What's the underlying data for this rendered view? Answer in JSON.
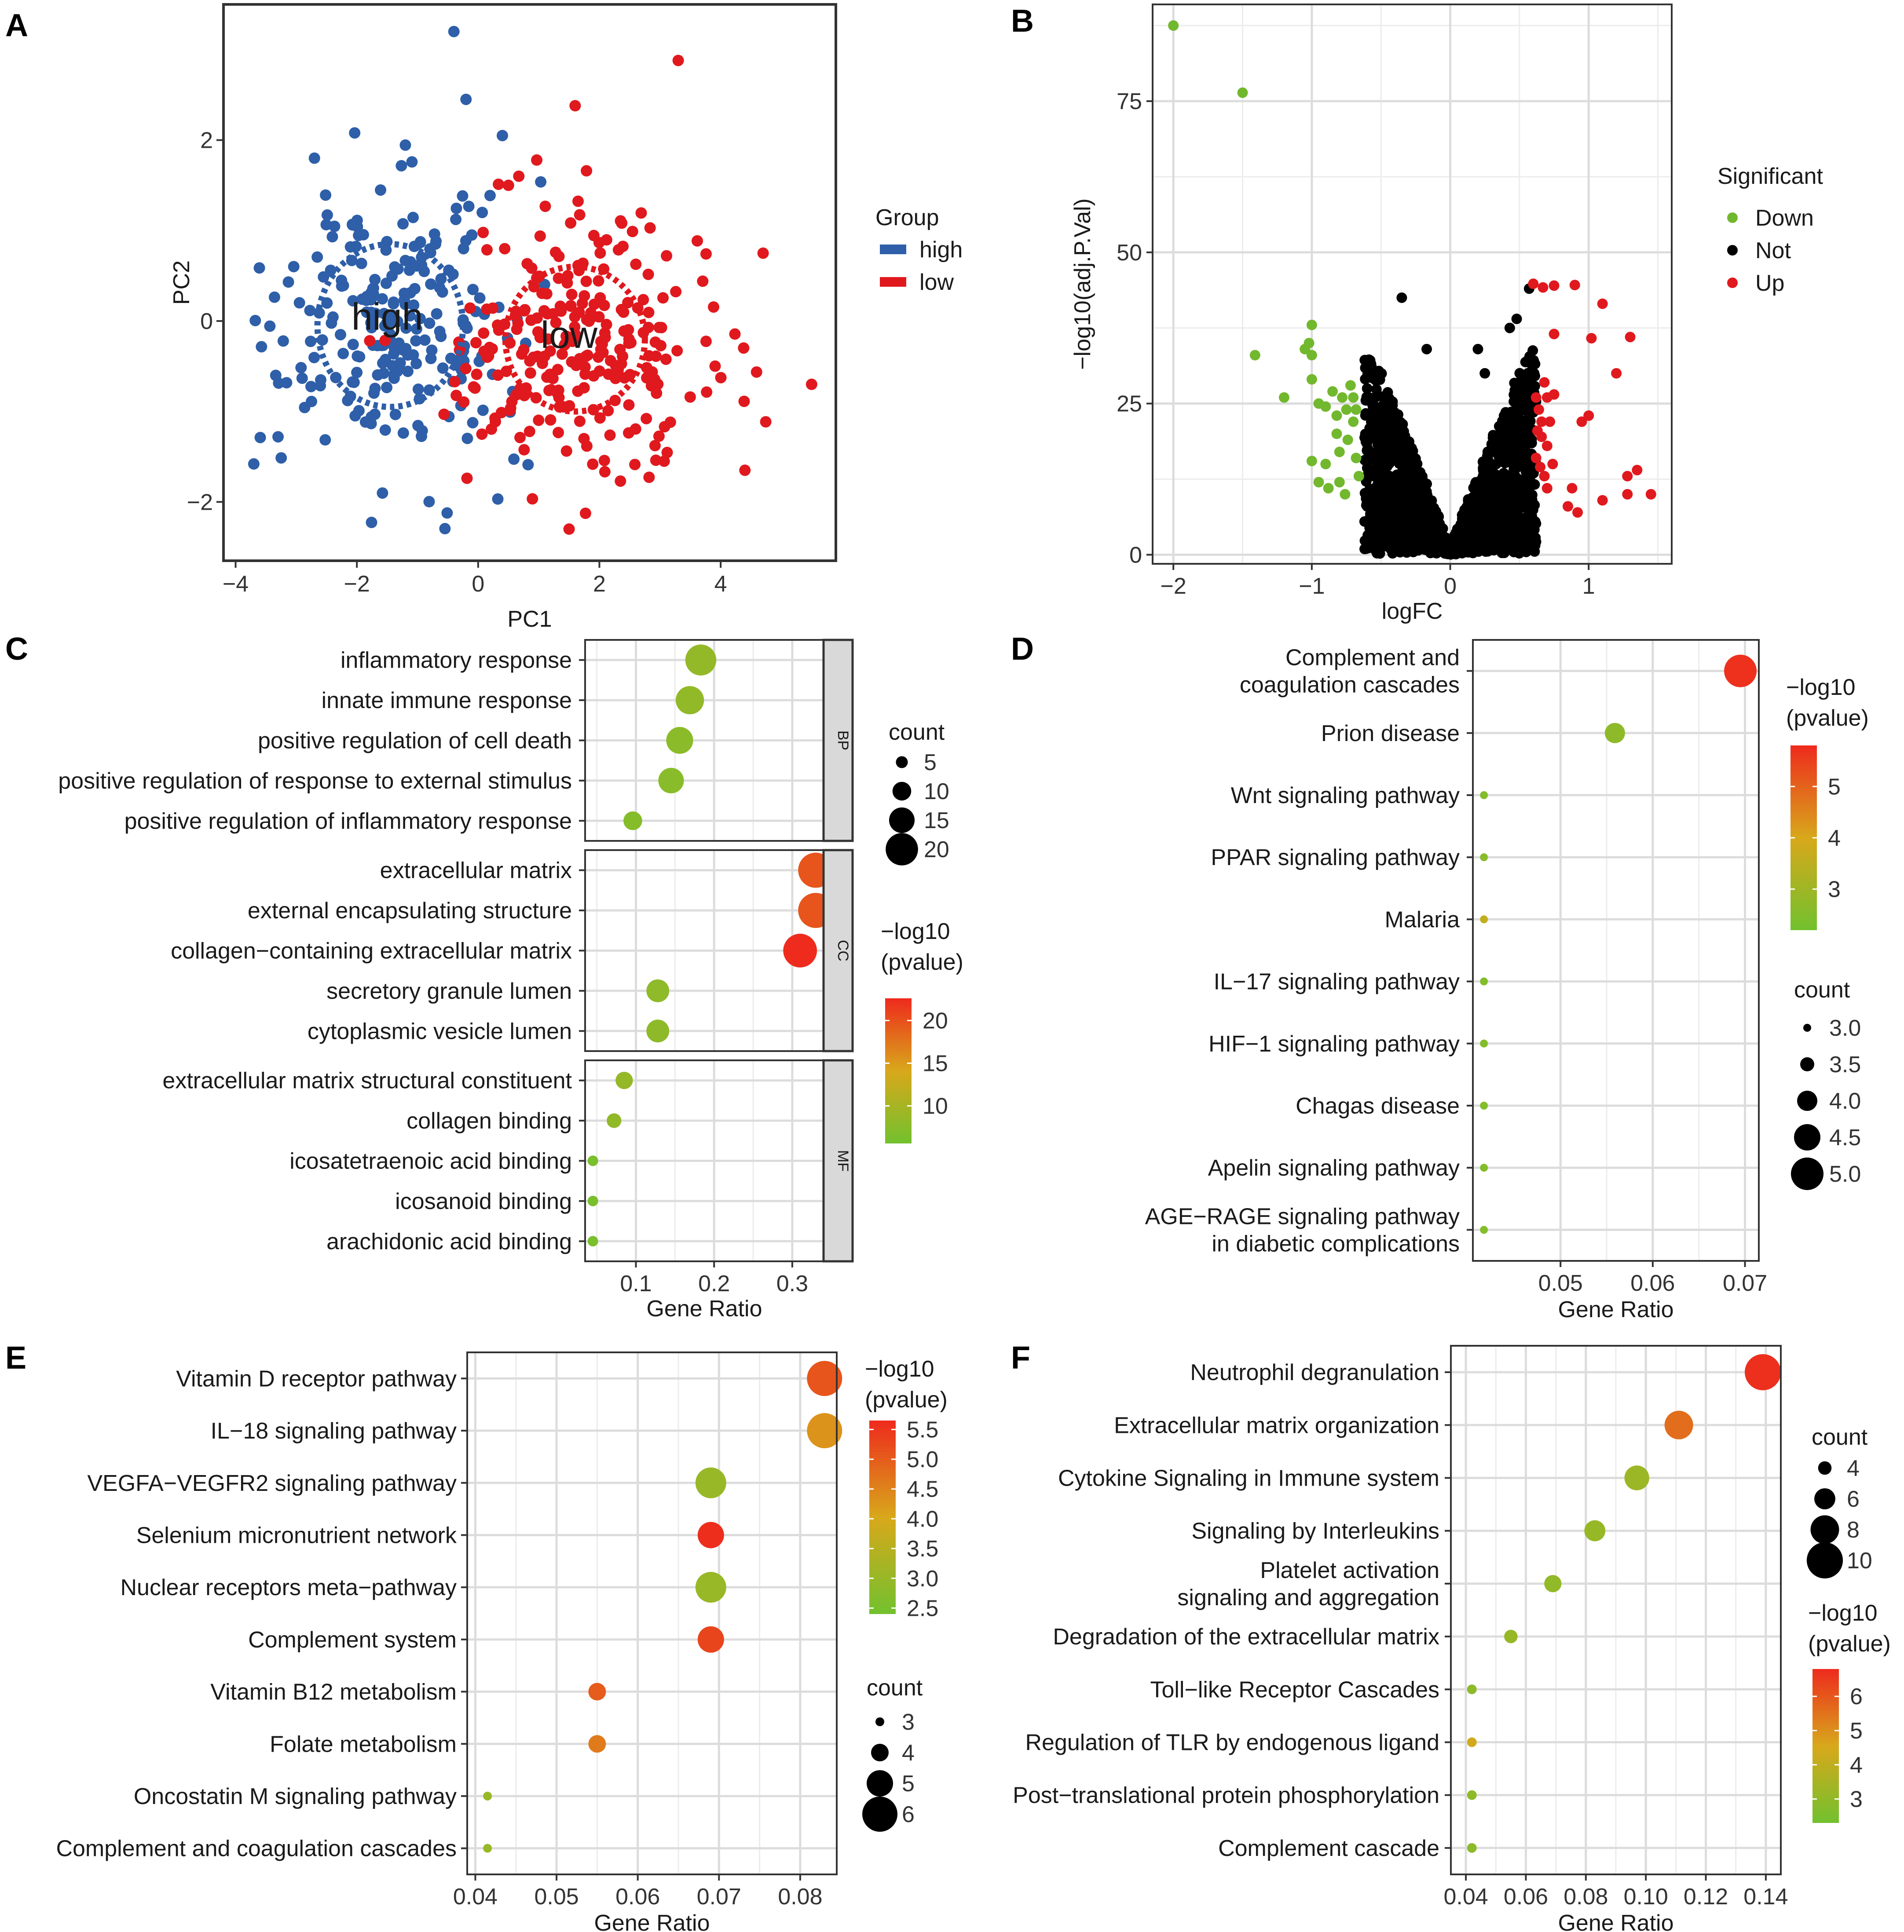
{
  "panel_letters": [
    "A",
    "B",
    "C",
    "D",
    "E",
    "F"
  ],
  "colors": {
    "high": "#2e5fa8",
    "low": "#e0191e",
    "down": "#72b82e",
    "not": "#000000",
    "up": "#e0191e",
    "grad_low": "#72c12e",
    "grad_mid": "#d8a81b",
    "grad_high": "#ee2a1d"
  },
  "chart_data": [
    {
      "panel": "A",
      "type": "scatter",
      "xlabel": "PC1",
      "ylabel": "PC2",
      "xlim": [
        -4.2,
        5.9
      ],
      "ylim": [
        -2.65,
        3.5
      ],
      "xticks": [
        -4,
        -2,
        0,
        2,
        4
      ],
      "yticks": [
        -2,
        0,
        2
      ],
      "xtick_labels": [
        "−4",
        "−2",
        "0",
        "2",
        "4"
      ],
      "ytick_labels": [
        "−2",
        "0",
        "2"
      ],
      "legend": {
        "title": "Group",
        "entries": [
          "high",
          "low"
        ],
        "position": "right"
      },
      "annotations": [
        {
          "text": "high",
          "x": -1.5,
          "y": 0.05
        },
        {
          "text": "low",
          "x": 1.5,
          "y": -0.15
        }
      ],
      "ellipses": [
        {
          "group": "high",
          "cx": -1.45,
          "cy": -0.05,
          "rx": 1.2,
          "ry": 0.9
        },
        {
          "group": "low",
          "cx": 1.6,
          "cy": -0.2,
          "rx": 1.15,
          "ry": 0.8
        }
      ],
      "series": [
        {
          "name": "high",
          "n": 240,
          "cx": -1.45,
          "cy": -0.05,
          "sx": 0.95,
          "sy": 0.75,
          "outliers": [
            [
              -0.4,
              3.2
            ],
            [
              -0.2,
              2.45
            ],
            [
              0.4,
              2.05
            ],
            [
              -3.7,
              -1.58
            ],
            [
              -3.3,
              -1.28
            ],
            [
              -2.7,
              1.8
            ]
          ]
        },
        {
          "name": "low",
          "n": 260,
          "cx": 1.6,
          "cy": -0.3,
          "sx": 1.05,
          "sy": 0.65,
          "outliers": [
            [
              3.3,
              2.88
            ],
            [
              1.6,
              2.38
            ],
            [
              5.5,
              -0.7
            ],
            [
              4.4,
              -1.65
            ],
            [
              1.5,
              -2.3
            ],
            [
              0.5,
              1.5
            ],
            [
              4.7,
              0.75
            ]
          ]
        }
      ]
    },
    {
      "panel": "B",
      "type": "scatter",
      "title": "",
      "xlabel": "logFC",
      "ylabel": "−log10(adj.P.Val)",
      "xlim": [
        -2.15,
        1.6
      ],
      "ylim": [
        -1.5,
        91
      ],
      "xticks": [
        -2,
        -1,
        0,
        1
      ],
      "yticks": [
        0,
        25,
        50,
        75
      ],
      "xtick_labels": [
        "−2",
        "−1",
        "0",
        "1"
      ],
      "ytick_labels": [
        "0",
        "25",
        "50",
        "75"
      ],
      "legend": {
        "title": "Significant",
        "entries": [
          "Down",
          "Not",
          "Up"
        ],
        "position": "right"
      },
      "series": [
        {
          "name": "Down",
          "points": [
            [
              -2.0,
              87.5
            ],
            [
              -1.5,
              76.4
            ],
            [
              -1.41,
              33
            ],
            [
              -1.0,
              38
            ],
            [
              -1.02,
              35
            ],
            [
              -1.0,
              33
            ],
            [
              -1.05,
              34
            ],
            [
              -1.2,
              26
            ],
            [
              -1.0,
              29
            ],
            [
              -0.95,
              25
            ],
            [
              -1.0,
              15.5
            ],
            [
              -0.9,
              15
            ],
            [
              -0.95,
              12
            ],
            [
              -0.82,
              20
            ],
            [
              -0.8,
              17
            ],
            [
              -0.85,
              27
            ],
            [
              -0.78,
              26
            ],
            [
              -0.75,
              24
            ],
            [
              -0.72,
              28
            ],
            [
              -0.7,
              22
            ],
            [
              -0.68,
              16
            ],
            [
              -0.66,
              13
            ],
            [
              -0.8,
              12
            ],
            [
              -0.76,
              10
            ],
            [
              -0.88,
              11
            ],
            [
              -0.74,
              19
            ],
            [
              -0.7,
              26
            ],
            [
              -0.68,
              24
            ],
            [
              -0.82,
              23
            ],
            [
              -0.9,
              24.5
            ]
          ]
        },
        {
          "name": "Not",
          "n": 1600,
          "xmax": 0.62,
          "ymax": 45,
          "points": [
            [
              -0.35,
              42.5
            ],
            [
              -0.17,
              34
            ],
            [
              0.2,
              34
            ],
            [
              0.25,
              30
            ],
            [
              0.43,
              37.5
            ],
            [
              0.48,
              39
            ],
            [
              0.57,
              44
            ],
            [
              -0.6,
              8
            ],
            [
              -0.5,
              11
            ]
          ]
        },
        {
          "name": "Up",
          "points": [
            [
              0.6,
              44.8
            ],
            [
              0.67,
              44.2
            ],
            [
              0.75,
              44.5
            ],
            [
              0.9,
              44.6
            ],
            [
              1.1,
              41.5
            ],
            [
              0.75,
              36.5
            ],
            [
              0.75,
              26.5
            ],
            [
              1.02,
              35.8
            ],
            [
              1.3,
              36
            ],
            [
              0.68,
              28.5
            ],
            [
              0.7,
              26
            ],
            [
              0.72,
              22
            ],
            [
              0.66,
              19.5
            ],
            [
              0.62,
              16
            ],
            [
              0.68,
              13
            ],
            [
              0.7,
              11
            ],
            [
              0.64,
              24
            ],
            [
              0.66,
              22
            ],
            [
              0.7,
              18
            ],
            [
              0.63,
              20.5
            ],
            [
              0.65,
              14.5
            ],
            [
              0.74,
              15
            ],
            [
              0.88,
              11
            ],
            [
              0.85,
              8
            ],
            [
              0.92,
              7
            ],
            [
              1.1,
              9
            ],
            [
              1.28,
              10
            ],
            [
              1.45,
              10
            ],
            [
              1.35,
              14
            ],
            [
              1.28,
              13
            ],
            [
              0.95,
              22
            ],
            [
              1.0,
              23
            ],
            [
              1.2,
              30
            ],
            [
              0.62,
              26
            ]
          ]
        }
      ]
    },
    {
      "panel": "C",
      "type": "scatter",
      "subtype": "dotplot-faceted",
      "xlabel": "Gene Ratio",
      "xlim": [
        0.035,
        0.34
      ],
      "xticks": [
        0.1,
        0.2,
        0.3
      ],
      "xtick_labels": [
        "0.1",
        "0.2",
        "0.3"
      ],
      "size_legend": {
        "title": "count",
        "values": [
          5,
          10,
          15,
          20
        ]
      },
      "color_legend": {
        "title": [
          "−log10",
          "(pvalue)"
        ],
        "min": 5.6,
        "max": 22.6,
        "ticks": [
          10,
          15,
          20
        ]
      },
      "facets": [
        {
          "name": "BP",
          "terms": [
            {
              "label": "inflammatory response",
              "ratio": 0.183,
              "count": 19,
              "p": 8.4
            },
            {
              "label": "innate immune response",
              "ratio": 0.169,
              "count": 17,
              "p": 8.2
            },
            {
              "label": "positive regulation of cell death",
              "ratio": 0.156,
              "count": 16,
              "p": 7.8
            },
            {
              "label": "positive regulation of response to external stimulus",
              "ratio": 0.145,
              "count": 15,
              "p": 7.4
            },
            {
              "label": "positive regulation of inflammatory response",
              "ratio": 0.096,
              "count": 10,
              "p": 7.2
            }
          ]
        },
        {
          "name": "CC",
          "terms": [
            {
              "label": "extracellular matrix",
              "ratio": 0.33,
              "count": 22,
              "p": 19.8
            },
            {
              "label": "external encapsulating structure",
              "ratio": 0.33,
              "count": 22,
              "p": 19.8
            },
            {
              "label": "collagen−containing extracellular matrix",
              "ratio": 0.31,
              "count": 21,
              "p": 22.5
            },
            {
              "label": "secretory granule lumen",
              "ratio": 0.128,
              "count": 13,
              "p": 8.0
            },
            {
              "label": "cytoplasmic vesicle lumen",
              "ratio": 0.128,
              "count": 13,
              "p": 7.9
            }
          ]
        },
        {
          "name": "MF",
          "terms": [
            {
              "label": "extracellular matrix structural constituent",
              "ratio": 0.085,
              "count": 9,
              "p": 8.5
            },
            {
              "label": "collagen binding",
              "ratio": 0.072,
              "count": 7,
              "p": 8.3
            },
            {
              "label": "icosatetraenoic acid binding",
              "ratio": 0.045,
              "count": 4,
              "p": 6.3
            },
            {
              "label": "icosanoid binding",
              "ratio": 0.045,
              "count": 4,
              "p": 6.3
            },
            {
              "label": "arachidonic acid binding",
              "ratio": 0.045,
              "count": 4,
              "p": 6.3
            }
          ]
        }
      ]
    },
    {
      "panel": "D",
      "type": "scatter",
      "subtype": "dotplot",
      "xlabel": "Gene Ratio",
      "xlim": [
        0.0405,
        0.0715
      ],
      "xticks": [
        0.05,
        0.06,
        0.07
      ],
      "xtick_labels": [
        "0.05",
        "0.06",
        "0.07"
      ],
      "size_legend": {
        "title": "count",
        "values": [
          3.0,
          3.5,
          4.0,
          4.5,
          5.0
        ],
        "labels": [
          "3.0",
          "3.5",
          "4.0",
          "4.5",
          "5.0"
        ]
      },
      "color_legend": {
        "title": [
          "−log10",
          "(pvalue)"
        ],
        "min": 2.2,
        "max": 5.8,
        "ticks": [
          3,
          4,
          5
        ]
      },
      "terms": [
        {
          "label": [
            "Complement and",
            "coagulation cascades"
          ],
          "ratio": 0.0695,
          "count": 5,
          "p": 5.7
        },
        {
          "label": [
            "Prion disease"
          ],
          "ratio": 0.0559,
          "count": 4,
          "p": 2.7
        },
        {
          "label": [
            "Wnt signaling pathway"
          ],
          "ratio": 0.0417,
          "count": 3,
          "p": 2.5
        },
        {
          "label": [
            "PPAR signaling pathway"
          ],
          "ratio": 0.0417,
          "count": 3,
          "p": 2.6
        },
        {
          "label": [
            "Malaria"
          ],
          "ratio": 0.0417,
          "count": 3,
          "p": 3.6
        },
        {
          "label": [
            "IL−17 signaling pathway"
          ],
          "ratio": 0.0417,
          "count": 3,
          "p": 2.5
        },
        {
          "label": [
            "HIF−1 signaling pathway"
          ],
          "ratio": 0.0417,
          "count": 3,
          "p": 2.5
        },
        {
          "label": [
            "Chagas disease"
          ],
          "ratio": 0.0417,
          "count": 3,
          "p": 2.5
        },
        {
          "label": [
            "Apelin signaling pathway"
          ],
          "ratio": 0.0417,
          "count": 3,
          "p": 2.5
        },
        {
          "label": [
            "AGE−RAGE signaling pathway",
            "in diabetic complications"
          ],
          "ratio": 0.0417,
          "count": 3,
          "p": 2.5
        }
      ]
    },
    {
      "panel": "E",
      "type": "scatter",
      "subtype": "dotplot",
      "xlabel": "Gene Ratio",
      "xlim": [
        0.039,
        0.0845
      ],
      "xticks": [
        0.04,
        0.05,
        0.06,
        0.07,
        0.08
      ],
      "xtick_labels": [
        "0.04",
        "0.05",
        "0.06",
        "0.07",
        "0.08"
      ],
      "size_legend": {
        "title": "count",
        "values": [
          3,
          4,
          5,
          6
        ]
      },
      "color_legend": {
        "title": [
          "−log10",
          "(pvalue)"
        ],
        "min": 2.4,
        "max": 5.65,
        "ticks": [
          2.5,
          3.0,
          3.5,
          4.0,
          4.5,
          5.0,
          5.5
        ],
        "labels": [
          "2.5",
          "3.0",
          "3.5",
          "4.0",
          "4.5",
          "5.0",
          "5.5"
        ]
      },
      "terms": [
        {
          "label": [
            "Vitamin D receptor pathway"
          ],
          "ratio": 0.083,
          "count": 6,
          "p": 5.1
        },
        {
          "label": [
            "IL−18 signaling pathway"
          ],
          "ratio": 0.083,
          "count": 6,
          "p": 4.3
        },
        {
          "label": [
            "VEGFA−VEGFR2 signaling pathway"
          ],
          "ratio": 0.069,
          "count": 5.5,
          "p": 3.0
        },
        {
          "label": [
            "Selenium micronutrient network"
          ],
          "ratio": 0.069,
          "count": 5,
          "p": 5.6
        },
        {
          "label": [
            "Nuclear receptors meta−pathway"
          ],
          "ratio": 0.069,
          "count": 5.5,
          "p": 3.0
        },
        {
          "label": [
            "Complement system"
          ],
          "ratio": 0.069,
          "count": 5,
          "p": 5.3
        },
        {
          "label": [
            "Vitamin B12 metabolism"
          ],
          "ratio": 0.055,
          "count": 4,
          "p": 5.0
        },
        {
          "label": [
            "Folate metabolism"
          ],
          "ratio": 0.055,
          "count": 4,
          "p": 4.6
        },
        {
          "label": [
            "Oncostatin M signaling pathway"
          ],
          "ratio": 0.0415,
          "count": 3,
          "p": 3.0
        },
        {
          "label": [
            "Complement and coagulation cascades"
          ],
          "ratio": 0.0415,
          "count": 3,
          "p": 3.0
        }
      ]
    },
    {
      "panel": "F",
      "type": "scatter",
      "subtype": "dotplot",
      "xlabel": "Gene Ratio",
      "xlim": [
        0.035,
        0.145
      ],
      "xticks": [
        0.04,
        0.06,
        0.08,
        0.1,
        0.12,
        0.14
      ],
      "xtick_labels": [
        "0.04",
        "0.06",
        "0.08",
        "0.10",
        "0.12",
        "0.14"
      ],
      "size_legend": {
        "title": "count",
        "values": [
          4,
          6,
          8,
          10
        ]
      },
      "color_legend": {
        "title": [
          "−log10",
          "(pvalue)"
        ],
        "min": 2.3,
        "max": 6.8,
        "ticks": [
          3,
          4,
          5,
          6
        ]
      },
      "terms": [
        {
          "label": [
            "Neutrophil degranulation"
          ],
          "ratio": 0.139,
          "count": 10,
          "p": 6.7
        },
        {
          "label": [
            "Extracellular matrix organization"
          ],
          "ratio": 0.111,
          "count": 8,
          "p": 5.6
        },
        {
          "label": [
            "Cytokine Signaling in Immune system"
          ],
          "ratio": 0.097,
          "count": 7,
          "p": 3.2
        },
        {
          "label": [
            "Signaling by Interleukins"
          ],
          "ratio": 0.083,
          "count": 6,
          "p": 3.1
        },
        {
          "label": [
            "Platelet activation",
            "signaling and aggregation"
          ],
          "ratio": 0.069,
          "count": 5,
          "p": 3.0
        },
        {
          "label": [
            "Degradation of the extracellular matrix"
          ],
          "ratio": 0.055,
          "count": 4,
          "p": 3.1
        },
        {
          "label": [
            "Toll−like Receptor Cascades"
          ],
          "ratio": 0.042,
          "count": 3,
          "p": 2.9
        },
        {
          "label": [
            "Regulation of TLR by endogenous ligand"
          ],
          "ratio": 0.042,
          "count": 3,
          "p": 4.4
        },
        {
          "label": [
            "Post−translational protein phosphorylation"
          ],
          "ratio": 0.042,
          "count": 3,
          "p": 2.9
        },
        {
          "label": [
            "Complement cascade"
          ],
          "ratio": 0.042,
          "count": 3,
          "p": 2.9
        }
      ]
    }
  ]
}
